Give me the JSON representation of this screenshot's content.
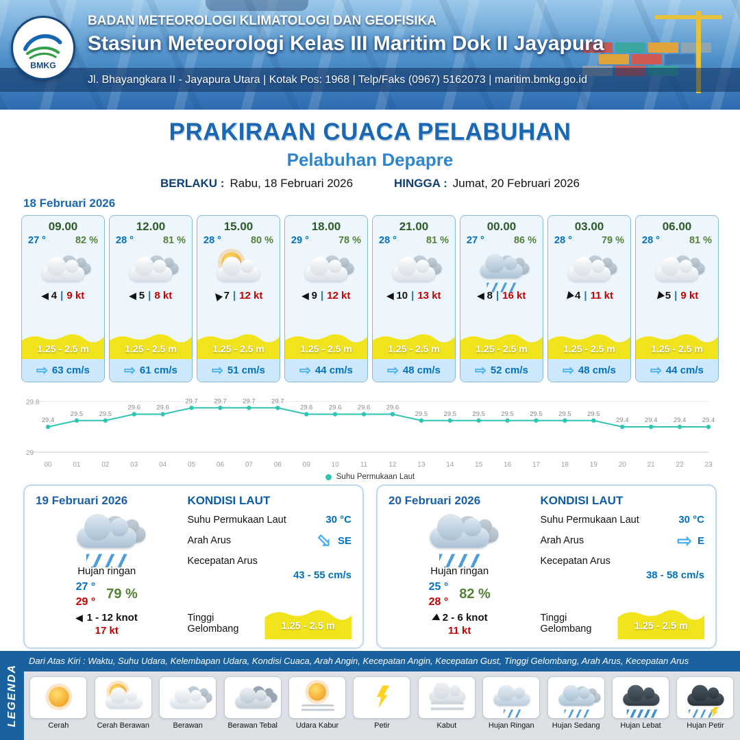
{
  "colors": {
    "accent_blue": "#1a67b3",
    "temp_blue": "#0070c0",
    "humidity_green": "#538135",
    "alert_red": "#c00000",
    "wave_yellow": "#f2e41c",
    "current_blue": "#45aef0",
    "sst_line": "#2fc5b2",
    "header_blue": "#2e6cb0"
  },
  "header": {
    "logo_text": "BMKG",
    "agency": "BADAN METEOROLOGI KLIMATOLOGI DAN GEOFISIKA",
    "station": "Stasiun Meteorologi Kelas III Maritim Dok II Jayapura",
    "contact": "Jl. Bhayangkara II - Jayapura Utara | Kotak Pos: 1968 | Telp/Faks (0967) 5162073 | maritim.bmkg.go.id"
  },
  "title": {
    "main": "PRAKIRAAN CUACA PELABUHAN",
    "sub": "Pelabuhan Depapre",
    "berlaku_label": "BERLAKU :",
    "berlaku_value": "Rabu, 18 Februari 2026",
    "hingga_label": "HINGGA :",
    "hingga_value": "Jumat, 20 Februari 2026"
  },
  "forecast": {
    "date_label": "18 Februari 2026",
    "cards": [
      {
        "time": "09.00",
        "temp": "27 °",
        "rh": "82 %",
        "icon": "cloud",
        "wind_dir_deg": 0,
        "wind": "4",
        "gust": "9 kt",
        "wave": "1.25 - 2.5 m",
        "current": "63 cm/s"
      },
      {
        "time": "12.00",
        "temp": "28 °",
        "rh": "81 %",
        "icon": "cloud",
        "wind_dir_deg": 0,
        "wind": "5",
        "gust": "8 kt",
        "wave": "1.25 - 2.5 m",
        "current": "61 cm/s"
      },
      {
        "time": "15.00",
        "temp": "28 °",
        "rh": "80 %",
        "icon": "sun-cloud",
        "wind_dir_deg": 50,
        "wind": "7",
        "gust": "12 kt",
        "wave": "1.25 - 2.5 m",
        "current": "51 cm/s"
      },
      {
        "time": "18.00",
        "temp": "29 °",
        "rh": "78 %",
        "icon": "cloud",
        "wind_dir_deg": 0,
        "wind": "9",
        "gust": "12 kt",
        "wave": "1.25 - 2.5 m",
        "current": "44 cm/s"
      },
      {
        "time": "21.00",
        "temp": "28 °",
        "rh": "81 %",
        "icon": "cloud",
        "wind_dir_deg": 0,
        "wind": "10",
        "gust": "13 kt",
        "wave": "1.25 - 2.5 m",
        "current": "48 cm/s"
      },
      {
        "time": "00.00",
        "temp": "27 °",
        "rh": "86 %",
        "icon": "rain-med",
        "wind_dir_deg": 0,
        "wind": "8",
        "gust": "16 kt",
        "wave": "1.25 - 2.5 m",
        "current": "52 cm/s"
      },
      {
        "time": "03.00",
        "temp": "28 °",
        "rh": "79 %",
        "icon": "cloud",
        "wind_dir_deg": -50,
        "wind": "4",
        "gust": "11 kt",
        "wave": "1.25 - 2.5 m",
        "current": "48 cm/s"
      },
      {
        "time": "06.00",
        "temp": "28 °",
        "rh": "81 %",
        "icon": "cloud",
        "wind_dir_deg": -50,
        "wind": "5",
        "gust": "9 kt",
        "wave": "1.25 - 2.5 m",
        "current": "44 cm/s"
      }
    ]
  },
  "chart_data": {
    "type": "line",
    "legend": "Suhu Permukaan Laut",
    "line_color": "#2fc5b2",
    "ylim": [
      29,
      29.8
    ],
    "x": [
      "00",
      "01",
      "02",
      "03",
      "04",
      "05",
      "06",
      "07",
      "08",
      "09",
      "10",
      "11",
      "12",
      "13",
      "14",
      "15",
      "16",
      "17",
      "18",
      "19",
      "20",
      "21",
      "22",
      "23"
    ],
    "series": [
      {
        "name": "Suhu Permukaan Laut",
        "values": [
          29.4,
          29.5,
          29.5,
          29.6,
          29.6,
          29.7,
          29.7,
          29.7,
          29.7,
          29.6,
          29.6,
          29.6,
          29.6,
          29.5,
          29.5,
          29.5,
          29.5,
          29.5,
          29.5,
          29.5,
          29.4,
          29.4,
          29.4,
          29.4
        ]
      }
    ]
  },
  "day_summaries": [
    {
      "date": "19 Februari 2026",
      "icon": "rain-med",
      "condition": "Hujan ringan",
      "temp_min": "27 °",
      "temp_max": "29 °",
      "rh": "79 %",
      "wind_dir_deg": 0,
      "wind": "1 - 12 knot",
      "gust": "17 kt",
      "sea": {
        "heading": "KONDISI LAUT",
        "sst_label": "Suhu Permukaan Laut",
        "sst": "30 °C",
        "current_dir_label": "Arah Arus",
        "current_dir": "SE",
        "dir_deg": 45,
        "current_speed_label": "Kecepatan Arus",
        "current_speed": "43 - 55 cm/s",
        "wave_label": "Tinggi Gelombang",
        "wave": "1.25 - 2.5 m"
      }
    },
    {
      "date": "20 Februari 2026",
      "icon": "rain-med",
      "condition": "Hujan ringan",
      "temp_min": "25 °",
      "temp_max": "28 °",
      "rh": "82 %",
      "wind_dir_deg": -25,
      "wind": "2 - 6 knot",
      "gust": "11 kt",
      "sea": {
        "heading": "KONDISI LAUT",
        "sst_label": "Suhu Permukaan Laut",
        "sst": "30 °C",
        "current_dir_label": "Arah Arus",
        "current_dir": "E",
        "dir_deg": 0,
        "current_speed_label": "Kecepatan Arus",
        "current_speed": "38 - 58 cm/s",
        "wave_label": "Tinggi Gelombang",
        "wave": "1.25 - 2.5 m"
      }
    }
  ],
  "legend": {
    "vertical_label": "LEGENDA",
    "description": "Dari Atas Kiri : Waktu, Suhu Udara, Kelembapan Udara, Kondisi Cuaca, Arah Angin, Kecepatan Angin, Kecepatan Gust, Tinggi Gelombang, Arah Arus, Kecepatan Arus",
    "items": [
      {
        "label": "Cerah",
        "icon": "sun"
      },
      {
        "label": "Cerah Berawan",
        "icon": "sun-cloud"
      },
      {
        "label": "Berawan",
        "icon": "cloud"
      },
      {
        "label": "Berawan Tebal",
        "icon": "cloud-thick"
      },
      {
        "label": "Udara Kabur",
        "icon": "haze"
      },
      {
        "label": "Petir",
        "icon": "bolt"
      },
      {
        "label": "Kabut",
        "icon": "fog"
      },
      {
        "label": "Hujan Ringan",
        "icon": "rain-light"
      },
      {
        "label": "Hujan Sedang",
        "icon": "rain-med"
      },
      {
        "label": "Hujan Lebat",
        "icon": "rain-heavy"
      },
      {
        "label": "Hujan Petir",
        "icon": "rain-bolt"
      }
    ]
  }
}
